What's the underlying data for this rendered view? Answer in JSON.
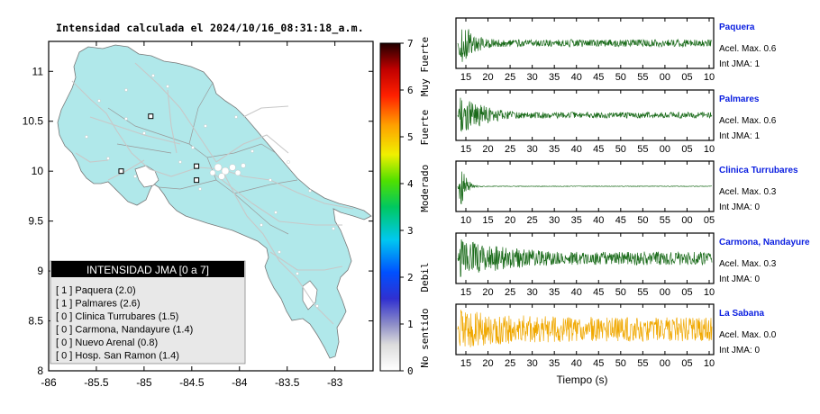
{
  "map": {
    "title": "Intensidad calculada el 2024/10/16_08:31:18_a.m.",
    "x_ticks": [
      "-86",
      "-85.5",
      "-85",
      "-84.5",
      "-84",
      "-83.5",
      "-83"
    ],
    "x_values": [
      -86,
      -85.5,
      -85,
      -84.5,
      -84,
      -83.5,
      -83
    ],
    "y_ticks": [
      "11",
      "10.5",
      "10",
      "9.5",
      "9",
      "8.5",
      "8"
    ],
    "y_values": [
      11,
      10.5,
      10,
      9.5,
      9,
      8.5,
      8
    ],
    "xlim": [
      -86,
      -82.6
    ],
    "ylim": [
      8,
      11.3
    ],
    "land_color": "#b0e8ea",
    "station_markers": [
      {
        "lon": -84.93,
        "lat": 10.55
      },
      {
        "lon": -85.24,
        "lat": 10.0
      },
      {
        "lon": -84.45,
        "lat": 10.05
      },
      {
        "lon": -84.45,
        "lat": 9.91
      }
    ]
  },
  "colorbar": {
    "ticks": [
      "0",
      "1",
      "2",
      "3",
      "4",
      "5",
      "6",
      "7"
    ],
    "range": [
      0,
      7
    ],
    "labels": [
      "No sentido",
      "Debil",
      "Moderado",
      "Fuerte",
      "Muy Fuerte"
    ]
  },
  "legend": {
    "title": "INTENSIDAD JMA [0 a 7]",
    "items": [
      "[ 1 ]  Paquera (2.0)",
      "[ 1 ]  Palmares (2.6)",
      "[ 0 ]  Clinica Turrubares (1.5)",
      "[ 0 ]  Carmona, Nandayure (1.4)",
      "[ 0 ]  Nuevo Arenal (0.8)",
      "[ 0 ]  Hosp. San Ramon (1.4)"
    ]
  },
  "waveforms": {
    "xlabel": "Tiempo (s)",
    "panels": [
      {
        "name": "Paquera",
        "accel": "Acel. Max. 0.6",
        "int": "Int JMA: 1",
        "color": "#1a6b1a",
        "ticks": [
          "15",
          "20",
          "25",
          "30",
          "35",
          "40",
          "45",
          "50",
          "55",
          "00",
          "05",
          "10"
        ],
        "amp": 0.9,
        "decay": 0.045,
        "floor": 0.18
      },
      {
        "name": "Palmares",
        "accel": "Acel. Max. 0.6",
        "int": "Int JMA: 1",
        "color": "#1a6b1a",
        "ticks": [
          "15",
          "20",
          "25",
          "30",
          "35",
          "40",
          "45",
          "50",
          "55",
          "00",
          "05",
          "10"
        ],
        "amp": 0.9,
        "decay": 0.03,
        "floor": 0.15
      },
      {
        "name": "Clinica Turrubares",
        "accel": "Acel. Max. 0.3",
        "int": "Int JMA: 0",
        "color": "#1a6b1a",
        "ticks": [
          "10",
          "15",
          "20",
          "25",
          "30",
          "35",
          "40",
          "45",
          "50",
          "55",
          "00",
          "05"
        ],
        "amp": 0.9,
        "decay": 0.15,
        "floor": 0.015
      },
      {
        "name": "Carmona, Nandayure",
        "accel": "Acel. Max. 0.3",
        "int": "Int JMA: 0",
        "color": "#1a6b1a",
        "ticks": [
          "15",
          "20",
          "25",
          "30",
          "35",
          "40",
          "45",
          "50",
          "55",
          "00",
          "05",
          "10"
        ],
        "amp": 0.85,
        "decay": 0.01,
        "floor": 0.35
      },
      {
        "name": "La Sabana",
        "accel": "Acel. Max. 0.0",
        "int": "Int JMA: 0",
        "color": "#f0a800",
        "ticks": [
          "15",
          "20",
          "25",
          "30",
          "35",
          "40",
          "45",
          "50",
          "55",
          "00",
          "05",
          "10"
        ],
        "amp": 0.9,
        "decay": 0.0,
        "floor": 0.6
      }
    ]
  },
  "chart_data": {
    "type": "line",
    "title": "Intensidad calculada el 2024/10/16_08:31:18_a.m.",
    "xlabel": "Tiempo (s)",
    "ylabel": "",
    "series": [
      {
        "name": "Paquera",
        "peak_accel": 0.6,
        "jma_int": 1
      },
      {
        "name": "Palmares",
        "peak_accel": 0.6,
        "jma_int": 1
      },
      {
        "name": "Clinica Turrubares",
        "peak_accel": 0.3,
        "jma_int": 0
      },
      {
        "name": "Carmona, Nandayure",
        "peak_accel": 0.3,
        "jma_int": 0
      },
      {
        "name": "La Sabana",
        "peak_accel": 0.0,
        "jma_int": 0
      }
    ]
  }
}
